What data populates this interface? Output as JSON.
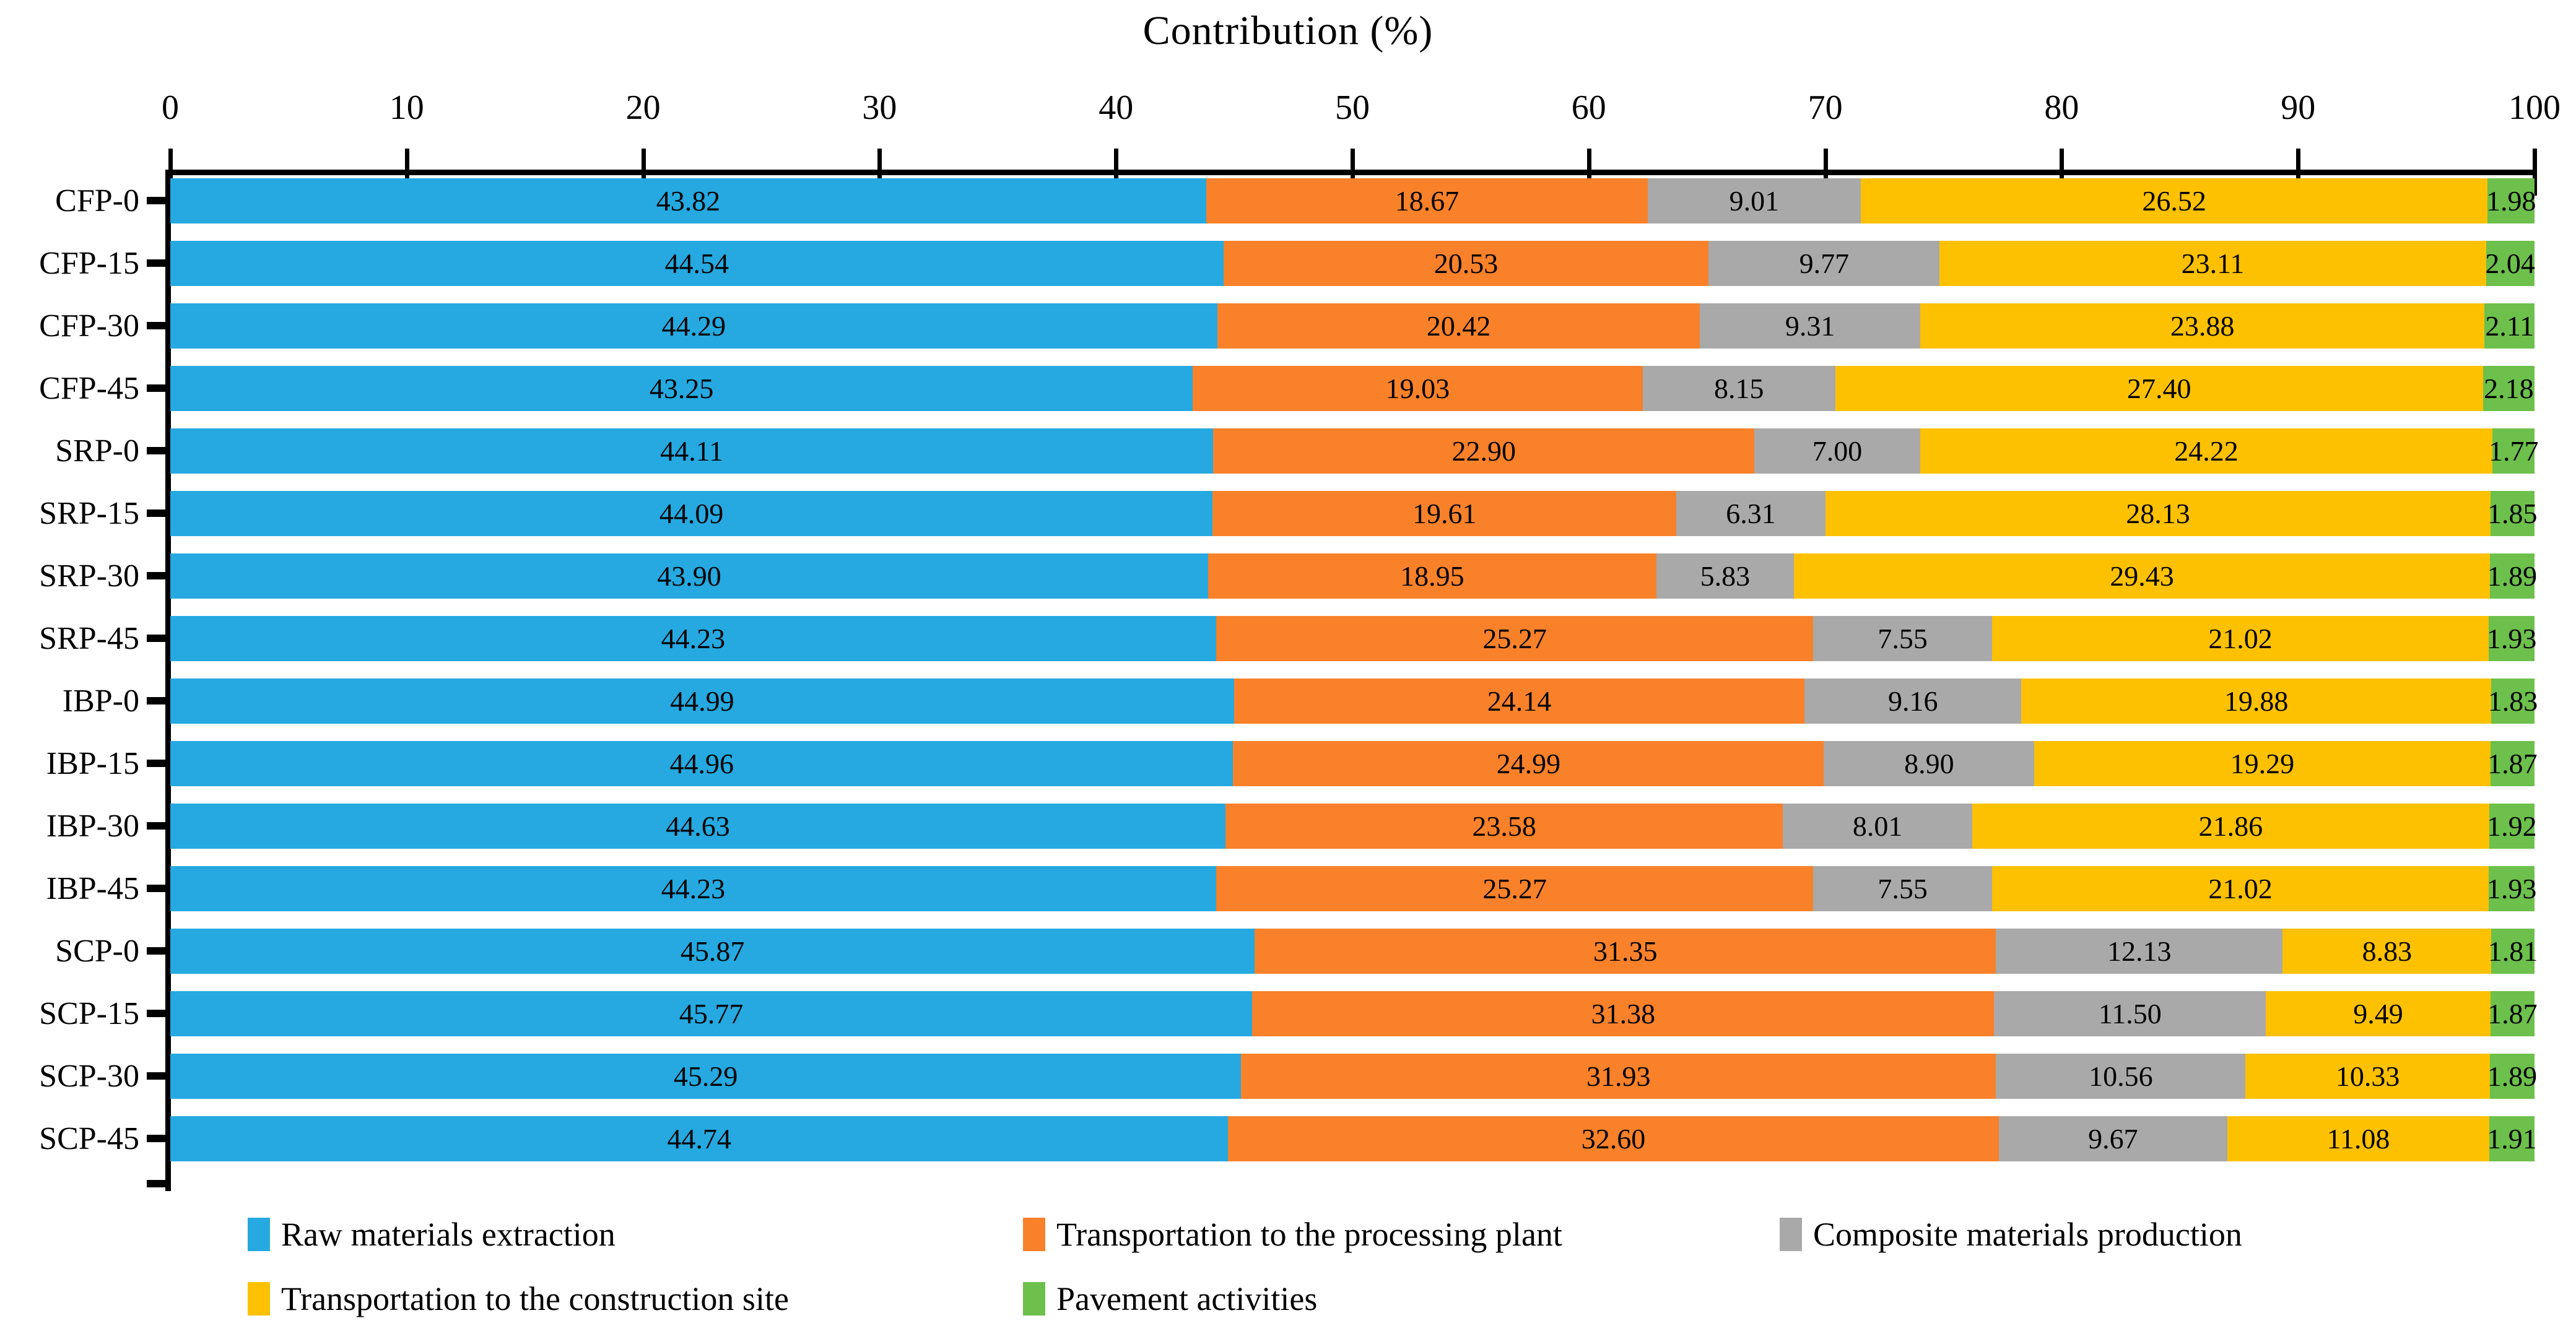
{
  "title": "Contribution (%)",
  "chart_data": {
    "type": "bar",
    "orientation": "horizontal-stacked",
    "title": "Contribution (%)",
    "xlabel": "Contribution (%)",
    "ylabel": "",
    "xlim": [
      0,
      100
    ],
    "x_ticks": [
      0,
      10,
      20,
      30,
      40,
      50,
      60,
      70,
      80,
      90,
      100
    ],
    "grid": false,
    "value_labels": "two-decimals, centered in each segment",
    "legend_position": "bottom",
    "axis_color": "#000000",
    "categories": [
      "CFP-0",
      "CFP-15",
      "CFP-30",
      "CFP-45",
      "SRP-0",
      "SRP-15",
      "SRP-30",
      "SRP-45",
      "IBP-0",
      "IBP-15",
      "IBP-30",
      "IBP-45",
      "SCP-0",
      "SCP-15",
      "SCP-30",
      "SCP-45"
    ],
    "series": [
      {
        "name": "Raw materials extraction",
        "color": "#25A9E0",
        "values": [
          43.82,
          44.54,
          44.29,
          43.25,
          44.11,
          44.09,
          43.9,
          44.23,
          44.99,
          44.96,
          44.63,
          44.23,
          45.87,
          45.77,
          45.29,
          44.74
        ]
      },
      {
        "name": "Transportation to the processing plant",
        "color": "#F8812A",
        "values": [
          18.67,
          20.53,
          20.42,
          19.03,
          22.9,
          19.61,
          18.95,
          25.27,
          24.14,
          24.99,
          23.58,
          25.27,
          31.35,
          31.38,
          31.93,
          32.6
        ]
      },
      {
        "name": "Composite materials production",
        "color": "#A9A9A9",
        "values": [
          9.01,
          9.77,
          9.31,
          8.15,
          7.0,
          6.31,
          5.83,
          7.55,
          9.16,
          8.9,
          8.01,
          7.55,
          12.13,
          11.5,
          10.56,
          9.67
        ]
      },
      {
        "name": "Transportation to the construction site",
        "color": "#FDC101",
        "values": [
          26.52,
          23.11,
          23.88,
          27.4,
          24.22,
          28.13,
          29.43,
          21.02,
          19.88,
          19.29,
          21.86,
          21.02,
          8.83,
          9.49,
          10.33,
          11.08
        ]
      },
      {
        "name": "Pavement activities",
        "color": "#6CC04B",
        "values": [
          1.98,
          2.04,
          2.11,
          2.18,
          1.77,
          1.85,
          1.89,
          1.93,
          1.83,
          1.87,
          1.92,
          1.93,
          1.81,
          1.87,
          1.89,
          1.91
        ]
      }
    ]
  }
}
